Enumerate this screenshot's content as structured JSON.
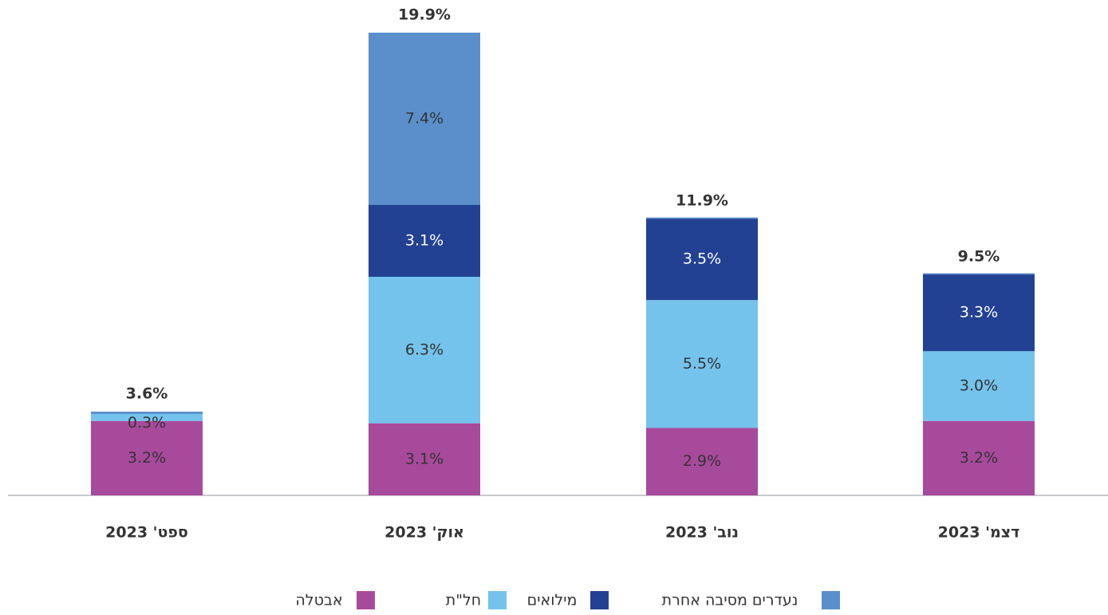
{
  "chart_data": {
    "type": "stacked_bar",
    "categories": [
      "ספט' 2023",
      "אוק' 2023",
      "נוב' 2023",
      "דצמ' 2023"
    ],
    "series": [
      {
        "name": "אבטלה",
        "color": "#a84a9c",
        "values": [
          3.2,
          3.1,
          2.9,
          3.2
        ],
        "value_labels": [
          "3.2%",
          "3.1%",
          "2.9%",
          "3.2%"
        ]
      },
      {
        "name": "חל\"ת",
        "color": "#74c3ec",
        "values": [
          0.3,
          6.3,
          5.5,
          3.0
        ],
        "value_labels": [
          "0.3%",
          "6.3%",
          "5.5%",
          "3.0%"
        ]
      },
      {
        "name": "מילואים",
        "color": "#234193",
        "values": [
          0.0,
          3.1,
          3.5,
          3.3
        ],
        "value_labels": [
          null,
          "3.1%",
          "3.5%",
          "3.3%"
        ]
      },
      {
        "name": "נעדרים מסיבה אחרת",
        "color": "#5b8fcb",
        "values": [
          0.1,
          7.4,
          0.05,
          0.05
        ],
        "value_labels": [
          null,
          "7.4%",
          null,
          null
        ]
      }
    ],
    "totals": [
      3.6,
      19.9,
      11.9,
      9.5
    ],
    "total_labels": [
      "3.6%",
      "19.9%",
      "11.9%",
      "9.5%"
    ],
    "ylim": [
      0,
      20
    ]
  }
}
